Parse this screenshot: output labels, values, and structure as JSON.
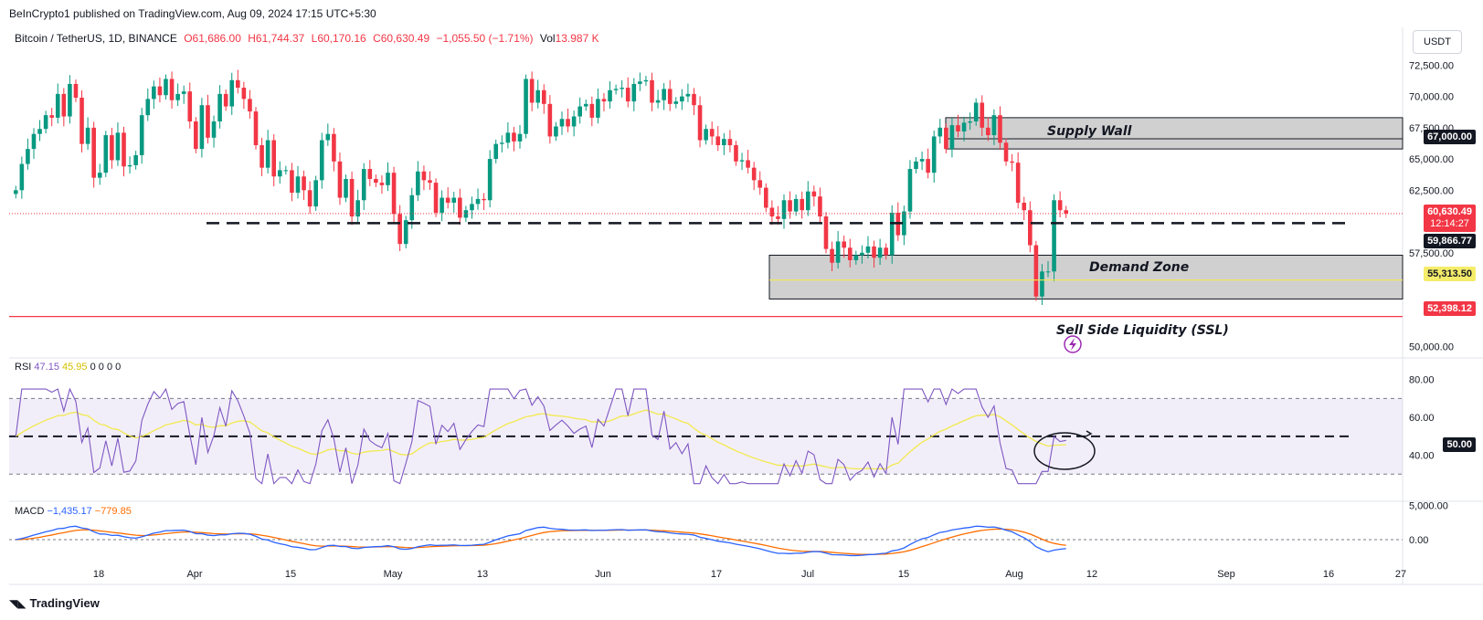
{
  "header": {
    "publish_line": "BeInCrypto1 published on TradingView.com, Aug 09, 2024 17:15 UTC+5:30",
    "symbol": "Bitcoin / TetherUS, 1D, BINANCE",
    "open": "O61,686.00",
    "high": "H61,744.37",
    "low": "L60,170.16",
    "close": "C60,630.49",
    "change": "−1,055.50 (−1.71%)",
    "volume_label": "Vol",
    "volume": "13.987 K",
    "currency": "USDT"
  },
  "footer": {
    "brand": "TradingView"
  },
  "colors": {
    "up": "#089981",
    "down": "#f23645",
    "rsi": "#7e57c2",
    "rsi_ma": "#f2e94e",
    "macd": "#2962ff",
    "signal": "#ff6d00",
    "zone": "#c8c8c8"
  },
  "price_labels": {
    "supply": "67,000.00",
    "current": "60,630.49",
    "countdown": "12:14:27",
    "dashed": "59,866.77",
    "demand_mid": "55,313.50",
    "ssl": "52,398.12",
    "rsi_mid": "50.00"
  },
  "annotations": {
    "supply": "Supply Wall",
    "demand": "Demand Zone",
    "ssl": "Sell Side Liquidity (SSL)"
  },
  "rsi": {
    "label": "RSI",
    "value": "47.15",
    "ma": "45.95",
    "extra": "0 0 0 0"
  },
  "macd": {
    "label": "MACD",
    "value": "−1,435.17",
    "signal": "−779.85"
  },
  "chart_data": {
    "type": "candlestick",
    "title": "Bitcoin / TetherUS, 1D, BINANCE",
    "price_axis": [
      "72,500.00",
      "70,000.00",
      "67,500.00",
      "65,000.00",
      "62,500.00",
      "57,500.00",
      "50,000.00"
    ],
    "rsi_axis": [
      "80.00",
      "60.00",
      "40.00"
    ],
    "macd_axis": [
      "5,000.00",
      "0.00"
    ],
    "x_labels": [
      "18",
      "Apr",
      "15",
      "May",
      "13",
      "Jun",
      "17",
      "Jul",
      "15",
      "Aug",
      "12",
      "Sep",
      "16",
      "27"
    ],
    "ylim": [
      48500,
      74500
    ],
    "zones": {
      "supply": [
        65800,
        68300
      ],
      "demand": [
        53800,
        57300
      ]
    },
    "levels": {
      "dashed": 59866.77,
      "demand_mid": 55313.5,
      "ssl": 52398.12,
      "current": 60630.49
    },
    "closes": [
      62500,
      64600,
      65800,
      67000,
      67400,
      68500,
      68300,
      70200,
      68400,
      71000,
      69900,
      66200,
      67500,
      63500,
      63900,
      66900,
      64900,
      67100,
      64400,
      64500,
      65300,
      68500,
      69800,
      70800,
      70100,
      71400,
      69700,
      70200,
      70400,
      68000,
      65800,
      69300,
      66700,
      68000,
      70200,
      69200,
      71300,
      70700,
      69800,
      68800,
      66100,
      64300,
      66500,
      63600,
      64100,
      64100,
      62300,
      63600,
      62500,
      61200,
      63300,
      66500,
      67000,
      64800,
      61900,
      63400,
      60400,
      61700,
      64200,
      63400,
      63100,
      62900,
      63900,
      60600,
      58200,
      60100,
      62100,
      64000,
      63300,
      63100,
      60700,
      61900,
      61500,
      61900,
      60300,
      60900,
      61400,
      61800,
      61700,
      65000,
      66200,
      66300,
      67100,
      66400,
      67000,
      71400,
      69500,
      70500,
      69400,
      66800,
      67600,
      68200,
      67600,
      68400,
      69200,
      69400,
      68300,
      69800,
      69600,
      70500,
      70600,
      70700,
      69600,
      71000,
      71200,
      71300,
      69500,
      69700,
      70600,
      69400,
      69600,
      70000,
      70200,
      69300,
      66500,
      67400,
      66800,
      66100,
      66600,
      66100,
      64800,
      64900,
      64300,
      63300,
      62700,
      61100,
      60400,
      60200,
      61700,
      60800,
      61800,
      60900,
      62400,
      62000,
      60400,
      57800,
      56700,
      58400,
      57900,
      56900,
      57300,
      57500,
      58000,
      57100,
      57900,
      57300,
      60700,
      58900,
      60800,
      64200,
      64800,
      65000,
      63900,
      66800,
      67500,
      65800,
      67700,
      67200,
      67900,
      68000,
      69500,
      67500,
      66900,
      68500,
      66300,
      64800,
      64700,
      61500,
      60900,
      58100,
      54000,
      56000,
      56000,
      61700,
      60900,
      60630
    ]
  }
}
